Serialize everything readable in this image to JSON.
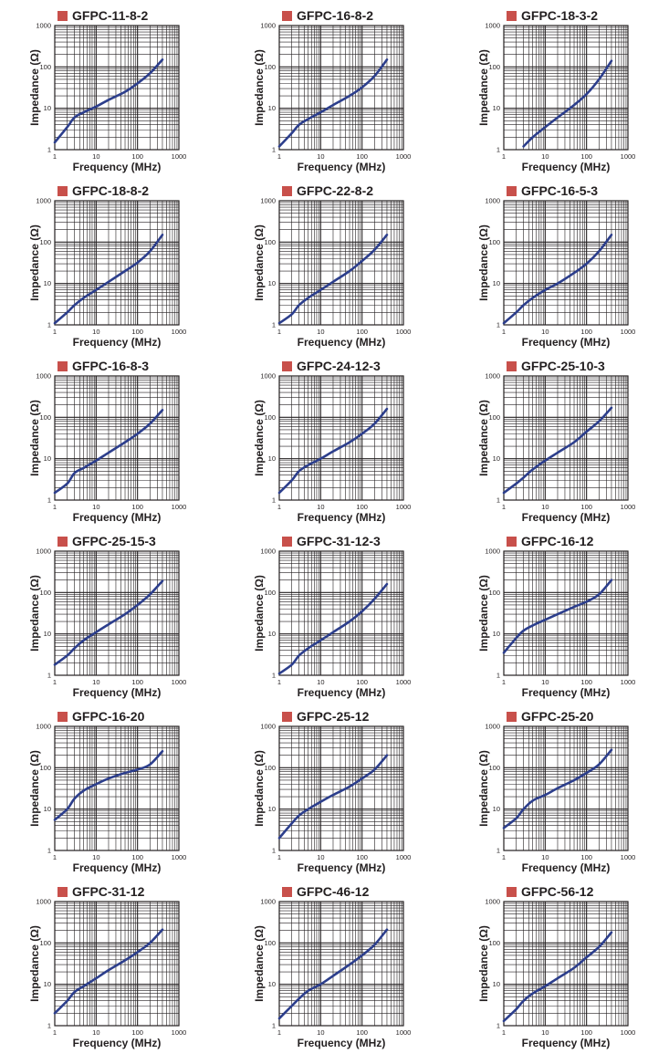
{
  "colors": {
    "marker": "#c8504b",
    "curve": "#2c3e8c",
    "grid": "#231f20",
    "text": "#231f20"
  },
  "chart_data": [
    {
      "type": "line",
      "title": "GFPC-11-8-2",
      "xlabel": "Frequency (MHz)",
      "ylabel": "Impedance (Ω)",
      "x_scale": "log",
      "y_scale": "log",
      "xlim": [
        1,
        1000
      ],
      "ylim": [
        1,
        1000
      ],
      "x_ticks": [
        "1",
        "10",
        "100",
        "1000"
      ],
      "y_ticks": [
        "1",
        "10",
        "100",
        "1000"
      ],
      "grid": true,
      "series": [
        {
          "x": [
            1,
            2,
            3,
            5,
            10,
            20,
            50,
            100,
            200,
            400
          ],
          "y": [
            1.5,
            3.5,
            6,
            8,
            11,
            16,
            25,
            40,
            70,
            150
          ]
        }
      ]
    },
    {
      "type": "line",
      "title": "GFPC-16-8-2",
      "xlabel": "Frequency (MHz)",
      "ylabel": "Impedance (Ω)",
      "x_scale": "log",
      "y_scale": "log",
      "xlim": [
        1,
        1000
      ],
      "ylim": [
        1,
        1000
      ],
      "x_ticks": [
        "1",
        "10",
        "100",
        "1000"
      ],
      "y_ticks": [
        "1",
        "10",
        "100",
        "1000"
      ],
      "grid": true,
      "series": [
        {
          "x": [
            1,
            2,
            3,
            5,
            10,
            20,
            50,
            100,
            200,
            400
          ],
          "y": [
            1.2,
            2.5,
            4,
            5.5,
            8,
            12,
            20,
            32,
            60,
            150
          ]
        }
      ]
    },
    {
      "type": "line",
      "title": "GFPC-18-3-2",
      "xlabel": "Frequency (MHz)",
      "ylabel": "Impedance (Ω)",
      "x_scale": "log",
      "y_scale": "log",
      "xlim": [
        1,
        1000
      ],
      "ylim": [
        1,
        1000
      ],
      "x_ticks": [
        "1",
        "10",
        "100",
        "1000"
      ],
      "y_ticks": [
        "1",
        "10",
        "100",
        "1000"
      ],
      "grid": true,
      "series": [
        {
          "x": [
            3,
            5,
            10,
            20,
            50,
            100,
            200,
            400
          ],
          "y": [
            1.2,
            2,
            3.5,
            6,
            12,
            22,
            50,
            140
          ]
        }
      ]
    },
    {
      "type": "line",
      "title": "GFPC-18-8-2",
      "xlabel": "Frequency (MHz)",
      "ylabel": "Impedance (Ω)",
      "x_scale": "log",
      "y_scale": "log",
      "xlim": [
        1,
        1000
      ],
      "ylim": [
        1,
        1000
      ],
      "x_ticks": [
        "1",
        "10",
        "100",
        "1000"
      ],
      "y_ticks": [
        "1",
        "10",
        "100",
        "1000"
      ],
      "grid": true,
      "series": [
        {
          "x": [
            1,
            2,
            3,
            5,
            10,
            20,
            50,
            100,
            200,
            400
          ],
          "y": [
            1.1,
            2,
            3,
            4.5,
            7,
            11,
            20,
            32,
            60,
            150
          ]
        }
      ]
    },
    {
      "type": "line",
      "title": "GFPC-22-8-2",
      "xlabel": "Frequency (MHz)",
      "ylabel": "Impedance (Ω)",
      "x_scale": "log",
      "y_scale": "log",
      "xlim": [
        1,
        1000
      ],
      "ylim": [
        1,
        1000
      ],
      "x_ticks": [
        "1",
        "10",
        "100",
        "1000"
      ],
      "y_ticks": [
        "1",
        "10",
        "100",
        "1000"
      ],
      "grid": true,
      "series": [
        {
          "x": [
            1,
            2,
            3,
            5,
            10,
            20,
            50,
            100,
            200,
            400
          ],
          "y": [
            1.1,
            1.8,
            3,
            4.5,
            7,
            11,
            20,
            35,
            65,
            150
          ]
        }
      ]
    },
    {
      "type": "line",
      "title": "GFPC-16-5-3",
      "xlabel": "Frequency (MHz)",
      "ylabel": "Impedance (Ω)",
      "x_scale": "log",
      "y_scale": "log",
      "xlim": [
        1,
        1000
      ],
      "ylim": [
        1,
        1000
      ],
      "x_ticks": [
        "1",
        "10",
        "100",
        "1000"
      ],
      "y_ticks": [
        "1",
        "10",
        "100",
        "1000"
      ],
      "grid": true,
      "series": [
        {
          "x": [
            1,
            2,
            3,
            5,
            10,
            20,
            50,
            100,
            200,
            400
          ],
          "y": [
            1.1,
            2,
            3,
            4.5,
            7,
            10,
            18,
            30,
            60,
            150
          ]
        }
      ]
    },
    {
      "type": "line",
      "title": "GFPC-16-8-3",
      "xlabel": "Frequency (MHz)",
      "ylabel": "Impedance (Ω)",
      "x_scale": "log",
      "y_scale": "log",
      "xlim": [
        1,
        1000
      ],
      "ylim": [
        1,
        1000
      ],
      "x_ticks": [
        "1",
        "10",
        "100",
        "1000"
      ],
      "y_ticks": [
        "1",
        "10",
        "100",
        "1000"
      ],
      "grid": true,
      "series": [
        {
          "x": [
            1,
            2,
            3,
            5,
            10,
            20,
            50,
            100,
            200,
            400
          ],
          "y": [
            1.5,
            2.5,
            4.5,
            6,
            9,
            14,
            25,
            40,
            70,
            150
          ]
        }
      ]
    },
    {
      "type": "line",
      "title": "GFPC-24-12-3",
      "xlabel": "Frequency (MHz)",
      "ylabel": "Impedance (Ω)",
      "x_scale": "log",
      "y_scale": "log",
      "xlim": [
        1,
        1000
      ],
      "ylim": [
        1,
        1000
      ],
      "x_ticks": [
        "1",
        "10",
        "100",
        "1000"
      ],
      "y_ticks": [
        "1",
        "10",
        "100",
        "1000"
      ],
      "grid": true,
      "series": [
        {
          "x": [
            1,
            2,
            3,
            5,
            10,
            20,
            50,
            100,
            200,
            400
          ],
          "y": [
            1.5,
            3,
            5,
            7,
            10,
            15,
            25,
            40,
            70,
            160
          ]
        }
      ]
    },
    {
      "type": "line",
      "title": "GFPC-25-10-3",
      "xlabel": "Frequency (MHz)",
      "ylabel": "Impedance (Ω)",
      "x_scale": "log",
      "y_scale": "log",
      "xlim": [
        1,
        1000
      ],
      "ylim": [
        1,
        1000
      ],
      "x_ticks": [
        "1",
        "10",
        "100",
        "1000"
      ],
      "y_ticks": [
        "1",
        "10",
        "100",
        "1000"
      ],
      "grid": true,
      "series": [
        {
          "x": [
            1,
            2,
            3,
            5,
            10,
            20,
            50,
            100,
            200,
            400
          ],
          "y": [
            1.5,
            2.5,
            3.5,
            5.5,
            9,
            14,
            25,
            45,
            80,
            170
          ]
        }
      ]
    },
    {
      "type": "line",
      "title": "GFPC-25-15-3",
      "xlabel": "Frequency (MHz)",
      "ylabel": "Impedance (Ω)",
      "x_scale": "log",
      "y_scale": "log",
      "xlim": [
        1,
        1000
      ],
      "ylim": [
        1,
        1000
      ],
      "x_ticks": [
        "1",
        "10",
        "100",
        "1000"
      ],
      "y_ticks": [
        "1",
        "10",
        "100",
        "1000"
      ],
      "grid": true,
      "series": [
        {
          "x": [
            1,
            2,
            3,
            5,
            10,
            20,
            50,
            100,
            200,
            400
          ],
          "y": [
            1.8,
            3,
            4.5,
            7,
            11,
            17,
            30,
            50,
            90,
            190
          ]
        }
      ]
    },
    {
      "type": "line",
      "title": "GFPC-31-12-3",
      "xlabel": "Frequency (MHz)",
      "ylabel": "Impedance (Ω)",
      "x_scale": "log",
      "y_scale": "log",
      "xlim": [
        1,
        1000
      ],
      "ylim": [
        1,
        1000
      ],
      "x_ticks": [
        "1",
        "10",
        "100",
        "1000"
      ],
      "y_ticks": [
        "1",
        "10",
        "100",
        "1000"
      ],
      "grid": true,
      "series": [
        {
          "x": [
            1,
            2,
            3,
            5,
            10,
            20,
            50,
            100,
            200,
            400
          ],
          "y": [
            1.1,
            1.8,
            3,
            4.5,
            7,
            11,
            20,
            35,
            70,
            160
          ]
        }
      ]
    },
    {
      "type": "line",
      "title": "GFPC-16-12",
      "xlabel": "Frequency (MHz)",
      "ylabel": "Impedance (Ω)",
      "x_scale": "log",
      "y_scale": "log",
      "xlim": [
        1,
        1000
      ],
      "ylim": [
        1,
        1000
      ],
      "x_ticks": [
        "1",
        "10",
        "100",
        "1000"
      ],
      "y_ticks": [
        "1",
        "10",
        "100",
        "1000"
      ],
      "grid": true,
      "series": [
        {
          "x": [
            1,
            2,
            3,
            5,
            10,
            20,
            50,
            100,
            200,
            400
          ],
          "y": [
            3.5,
            8,
            12,
            16,
            22,
            30,
            45,
            60,
            90,
            200
          ]
        }
      ]
    },
    {
      "type": "line",
      "title": "GFPC-16-20",
      "xlabel": "Frequency (MHz)",
      "ylabel": "Impedance (Ω)",
      "x_scale": "log",
      "y_scale": "log",
      "xlim": [
        1,
        1000
      ],
      "ylim": [
        1,
        1000
      ],
      "x_ticks": [
        "1",
        "10",
        "100",
        "1000"
      ],
      "y_ticks": [
        "1",
        "10",
        "100",
        "1000"
      ],
      "grid": true,
      "series": [
        {
          "x": [
            1,
            2,
            3,
            5,
            10,
            20,
            50,
            100,
            200,
            400
          ],
          "y": [
            5.5,
            10,
            18,
            28,
            40,
            55,
            75,
            90,
            120,
            250
          ]
        }
      ]
    },
    {
      "type": "line",
      "title": "GFPC-25-12",
      "xlabel": "Frequency (MHz)",
      "ylabel": "Impedance (Ω)",
      "x_scale": "log",
      "y_scale": "log",
      "xlim": [
        1,
        1000
      ],
      "ylim": [
        1,
        1000
      ],
      "x_ticks": [
        "1",
        "10",
        "100",
        "1000"
      ],
      "y_ticks": [
        "1",
        "10",
        "100",
        "1000"
      ],
      "grid": true,
      "series": [
        {
          "x": [
            1,
            2,
            3,
            5,
            10,
            20,
            50,
            100,
            200,
            400
          ],
          "y": [
            2,
            4.5,
            7,
            10,
            15,
            22,
            35,
            55,
            90,
            200
          ]
        }
      ]
    },
    {
      "type": "line",
      "title": "GFPC-25-20",
      "xlabel": "Frequency (MHz)",
      "ylabel": "Impedance (Ω)",
      "x_scale": "log",
      "y_scale": "log",
      "xlim": [
        1,
        1000
      ],
      "ylim": [
        1,
        1000
      ],
      "x_ticks": [
        "1",
        "10",
        "100",
        "1000"
      ],
      "y_ticks": [
        "1",
        "10",
        "100",
        "1000"
      ],
      "grid": true,
      "series": [
        {
          "x": [
            1,
            2,
            3,
            5,
            10,
            20,
            50,
            100,
            200,
            400
          ],
          "y": [
            3.5,
            6,
            10,
            16,
            22,
            32,
            50,
            75,
            120,
            270
          ]
        }
      ]
    },
    {
      "type": "line",
      "title": "GFPC-31-12",
      "xlabel": "Frequency (MHz)",
      "ylabel": "Impedance (Ω)",
      "x_scale": "log",
      "y_scale": "log",
      "xlim": [
        1,
        1000
      ],
      "ylim": [
        1,
        1000
      ],
      "x_ticks": [
        "1",
        "10",
        "100",
        "1000"
      ],
      "y_ticks": [
        "1",
        "10",
        "100",
        "1000"
      ],
      "grid": true,
      "series": [
        {
          "x": [
            1,
            2,
            3,
            5,
            10,
            20,
            50,
            100,
            200,
            400
          ],
          "y": [
            2,
            4,
            6.5,
            9,
            14,
            22,
            38,
            60,
            100,
            210
          ]
        }
      ]
    },
    {
      "type": "line",
      "title": "GFPC-46-12",
      "xlabel": "Frequency (MHz)",
      "ylabel": "Impedance (Ω)",
      "x_scale": "log",
      "y_scale": "log",
      "xlim": [
        1,
        1000
      ],
      "ylim": [
        1,
        1000
      ],
      "x_ticks": [
        "1",
        "10",
        "100",
        "1000"
      ],
      "y_ticks": [
        "1",
        "10",
        "100",
        "1000"
      ],
      "grid": true,
      "series": [
        {
          "x": [
            1,
            2,
            3,
            5,
            10,
            20,
            50,
            100,
            200,
            400
          ],
          "y": [
            1.5,
            3,
            4.5,
            7,
            10,
            16,
            30,
            50,
            90,
            210
          ]
        }
      ]
    },
    {
      "type": "line",
      "title": "GFPC-56-12",
      "xlabel": "Frequency (MHz)",
      "ylabel": "Impedance (Ω)",
      "x_scale": "log",
      "y_scale": "log",
      "xlim": [
        1,
        1000
      ],
      "ylim": [
        1,
        1000
      ],
      "x_ticks": [
        "1",
        "10",
        "100",
        "1000"
      ],
      "y_ticks": [
        "1",
        "10",
        "100",
        "1000"
      ],
      "grid": true,
      "series": [
        {
          "x": [
            1,
            2,
            3,
            5,
            10,
            20,
            50,
            100,
            200,
            400
          ],
          "y": [
            1.3,
            2.5,
            4,
            6,
            9,
            14,
            25,
            45,
            80,
            180
          ]
        }
      ]
    }
  ]
}
